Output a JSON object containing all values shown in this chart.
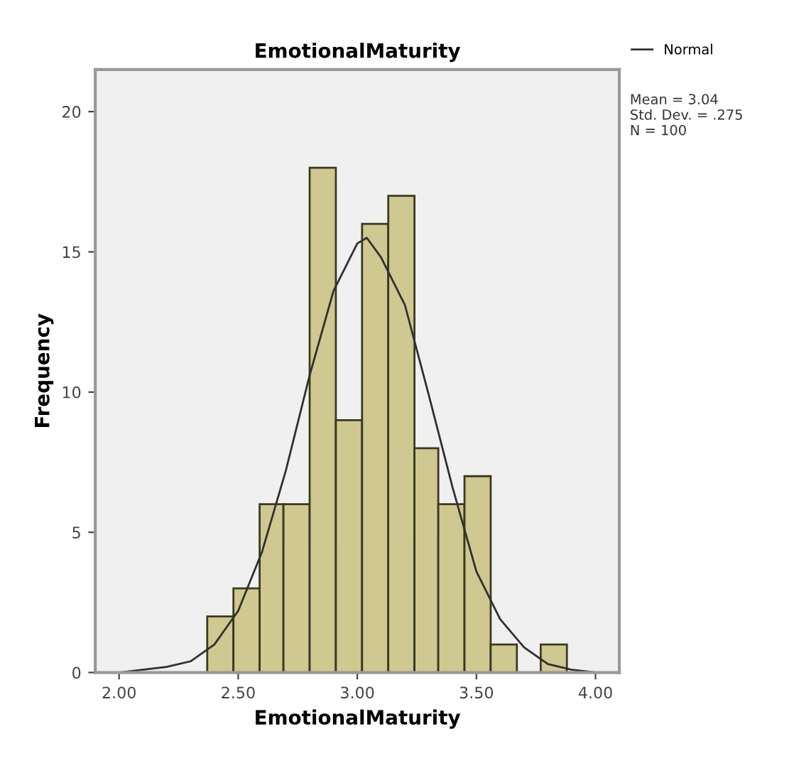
{
  "chart_data": {
    "type": "histogram",
    "title": "EmotionalMaturity",
    "xlabel": "EmotionalMaturity",
    "ylabel": "Frequency",
    "bins": [
      2.37,
      2.48,
      2.59,
      2.69,
      2.8,
      2.91,
      3.02,
      3.13,
      3.24,
      3.34,
      3.45,
      3.56,
      3.67,
      3.77,
      3.88
    ],
    "values": [
      2,
      3,
      6,
      6,
      18,
      9,
      16,
      17,
      8,
      6,
      7,
      1,
      0,
      1
    ],
    "color": "#cfc890",
    "series": [
      {
        "type": "line",
        "name": "Normal",
        "color": "#303030",
        "x": [
          2.0,
          2.1,
          2.2,
          2.3,
          2.4,
          2.5,
          2.6,
          2.7,
          2.8,
          2.9,
          3.0,
          3.04,
          3.1,
          3.2,
          3.3,
          3.4,
          3.5,
          3.6,
          3.7,
          3.8,
          3.9,
          4.0
        ],
        "values": [
          0.0,
          0.1,
          0.2,
          0.4,
          1.0,
          2.2,
          4.3,
          7.2,
          10.6,
          13.6,
          15.3,
          15.5,
          14.8,
          13.1,
          9.9,
          6.6,
          3.6,
          1.9,
          0.9,
          0.3,
          0.1,
          0.0
        ]
      }
    ],
    "annotations": [
      "Mean = 3.04\nStd. Dev. = .275\nN = 100"
    ],
    "xlim": [
      1.9,
      4.1
    ],
    "ylim": [
      0,
      21.5
    ],
    "xticks": [
      {
        "value": 2.0,
        "label": "2.00"
      },
      {
        "value": 2.5,
        "label": "2.50"
      },
      {
        "value": 3.0,
        "label": "3.00"
      },
      {
        "value": 3.5,
        "label": "3.50"
      },
      {
        "value": 4.0,
        "label": "4.00"
      }
    ],
    "yticks": [
      0,
      5,
      10,
      15,
      20
    ],
    "legend": "top right",
    "grid": false
  }
}
